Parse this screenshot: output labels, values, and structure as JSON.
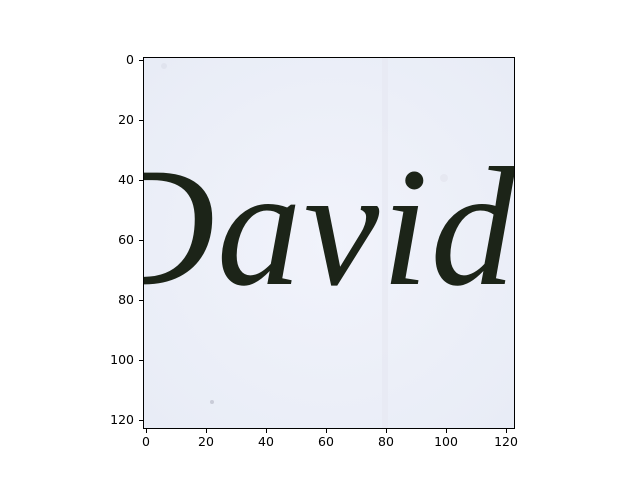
{
  "figure": {
    "image_text": "David",
    "x_ticks": [
      "0",
      "20",
      "40",
      "60",
      "80",
      "100",
      "120"
    ],
    "y_ticks": [
      "0",
      "20",
      "40",
      "60",
      "80",
      "100",
      "120"
    ],
    "colors": {
      "paper": "#eef1f9",
      "ink": "#1c2418",
      "frame": "#000000"
    }
  }
}
